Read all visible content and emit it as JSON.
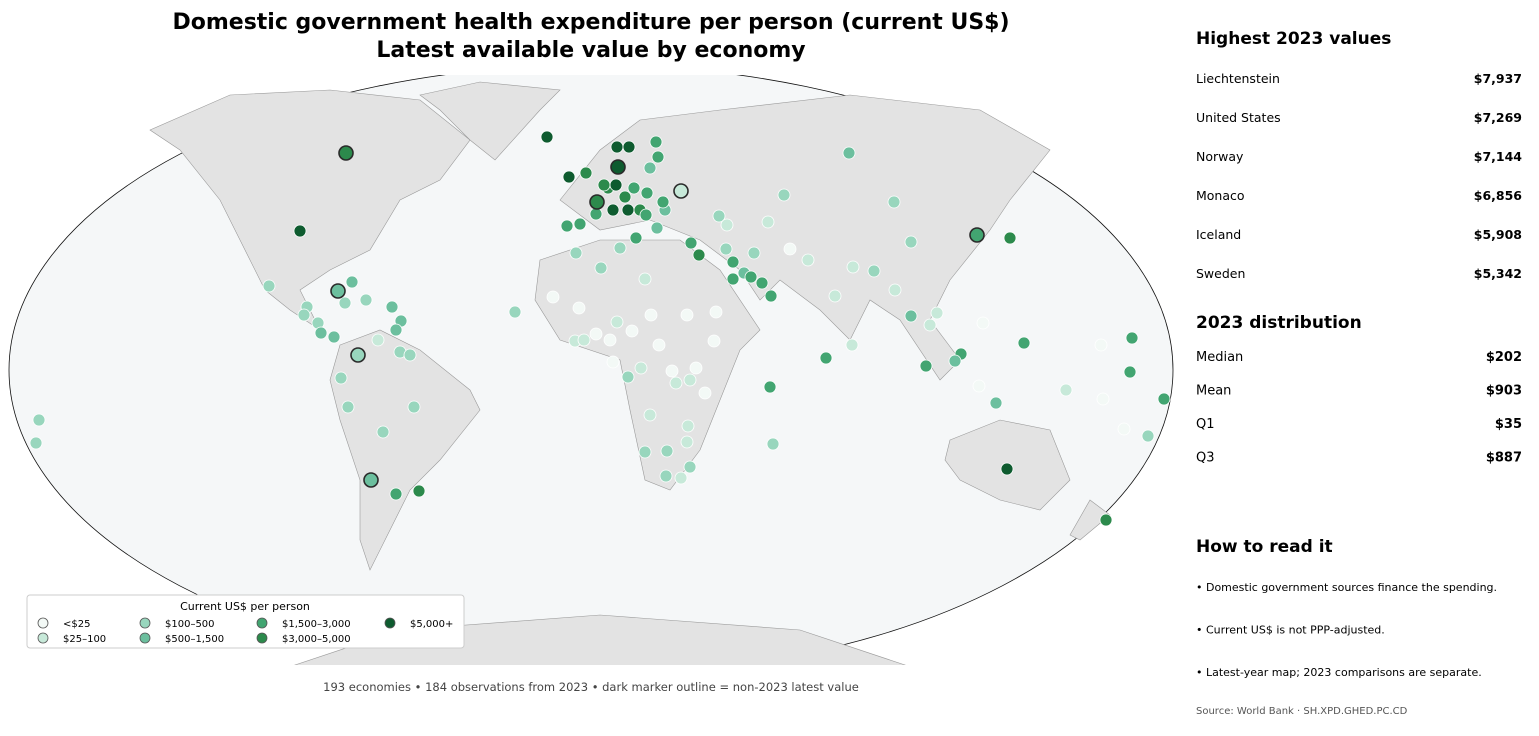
{
  "title": {
    "line1": "Domestic government health expenditure per person (current US$)",
    "line2": "Latest available value by economy"
  },
  "legend": {
    "title": "Current US$ per person",
    "items": [
      {
        "label": "<$25",
        "color": "#f3f9f6"
      },
      {
        "label": "$25–100",
        "color": "#c7e9d9"
      },
      {
        "label": "$100–500",
        "color": "#98d6bd"
      },
      {
        "label": "$500–1,500",
        "color": "#6cbf9e"
      },
      {
        "label": "$1,500–3,000",
        "color": "#42a571"
      },
      {
        "label": "$3,000–5,000",
        "color": "#2c8a4c"
      },
      {
        "label": "$5,000+",
        "color": "#0e5b2f"
      }
    ]
  },
  "footnote": "193 economies • 184 observations from 2023 • dark marker outline = non-2023 latest value",
  "top_values": {
    "title": "Highest 2023 values",
    "rows": [
      [
        "Liechtenstein",
        "$7,937"
      ],
      [
        "United States",
        "$7,269"
      ],
      [
        "Norway",
        "$7,144"
      ],
      [
        "Monaco",
        "$6,856"
      ],
      [
        "Iceland",
        "$5,908"
      ],
      [
        "Sweden",
        "$5,342"
      ]
    ]
  },
  "distribution": {
    "title": "2023 distribution",
    "rows": [
      [
        "Median",
        "$202"
      ],
      [
        "Mean",
        "$903"
      ],
      [
        "Q1",
        "$35"
      ],
      [
        "Q3",
        "$887"
      ]
    ]
  },
  "how_to_read": {
    "title": "How to read it",
    "items": [
      "• Domestic government sources finance the spending.",
      "• Current US$ is not PPP-adjusted.",
      "• Latest-year map; 2023 comparisons are separate."
    ]
  },
  "source": "Source: World Bank · SH.XPD.GHED.PC.CD"
}
